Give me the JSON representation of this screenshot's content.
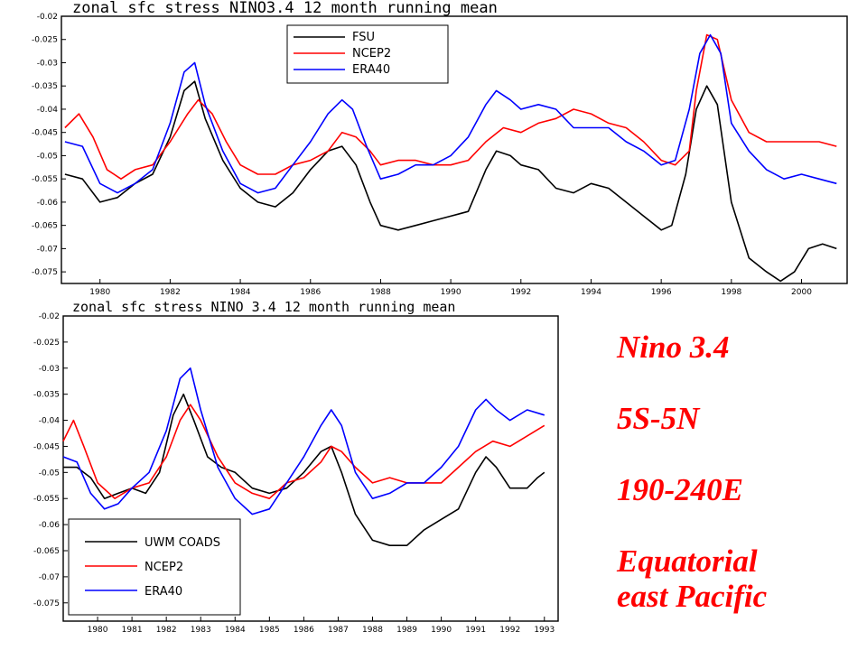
{
  "chart_data": [
    {
      "type": "line",
      "title": "zonal sfc stress NINO3.4 12 month running mean",
      "xlabel": "",
      "ylabel": "",
      "xlim": [
        1978.9,
        2001.3
      ],
      "ylim": [
        -0.0775,
        -0.02
      ],
      "yticks": [
        "-0.02",
        "-0.025",
        "-0.03",
        "-0.035",
        "-0.04",
        "-0.045",
        "-0.05",
        "-0.055",
        "-0.06",
        "-0.065",
        "-0.07",
        "-0.075"
      ],
      "xticks": [
        "1980",
        "1982",
        "1984",
        "1986",
        "1988",
        "1990",
        "1992",
        "1994",
        "1996",
        "1998",
        "2000"
      ],
      "grid": false,
      "legend": "top-left",
      "series": [
        {
          "name": "FSU",
          "color": "#000000",
          "x": [
            1979.0,
            1979.5,
            1980.0,
            1980.5,
            1981.0,
            1981.5,
            1982.0,
            1982.4,
            1982.7,
            1983.0,
            1983.5,
            1984.0,
            1984.5,
            1985.0,
            1985.5,
            1986.0,
            1986.5,
            1986.9,
            1987.3,
            1987.7,
            1988.0,
            1988.5,
            1989.0,
            1989.5,
            1990.0,
            1990.5,
            1991.0,
            1991.3,
            1991.7,
            1992.0,
            1992.5,
            1993.0,
            1993.5,
            1994.0,
            1994.5,
            1995.0,
            1995.5,
            1996.0,
            1996.3,
            1996.7,
            1997.0,
            1997.3,
            1997.6,
            1998.0,
            1998.5,
            1999.0,
            1999.4,
            1999.8,
            2000.2,
            2000.6,
            2001.0
          ],
          "y": [
            -0.054,
            -0.055,
            -0.06,
            -0.059,
            -0.056,
            -0.054,
            -0.046,
            -0.036,
            -0.034,
            -0.042,
            -0.051,
            -0.057,
            -0.06,
            -0.061,
            -0.058,
            -0.053,
            -0.049,
            -0.048,
            -0.052,
            -0.06,
            -0.065,
            -0.066,
            -0.065,
            -0.064,
            -0.063,
            -0.062,
            -0.053,
            -0.049,
            -0.05,
            -0.052,
            -0.053,
            -0.057,
            -0.058,
            -0.056,
            -0.057,
            -0.06,
            -0.063,
            -0.066,
            -0.065,
            -0.054,
            -0.04,
            -0.035,
            -0.039,
            -0.06,
            -0.072,
            -0.075,
            -0.077,
            -0.075,
            -0.07,
            -0.069,
            -0.07
          ]
        },
        {
          "name": "NCEP2",
          "color": "#ff0000",
          "x": [
            1979.0,
            1979.4,
            1979.8,
            1980.2,
            1980.6,
            1981.0,
            1981.5,
            1982.0,
            1982.5,
            1982.8,
            1983.2,
            1983.6,
            1984.0,
            1984.5,
            1985.0,
            1985.5,
            1986.0,
            1986.5,
            1986.9,
            1987.3,
            1987.7,
            1988.0,
            1988.5,
            1989.0,
            1989.5,
            1990.0,
            1990.5,
            1991.0,
            1991.5,
            1992.0,
            1992.5,
            1993.0,
            1993.5,
            1994.0,
            1994.5,
            1995.0,
            1995.5,
            1996.0,
            1996.4,
            1996.8,
            1997.0,
            1997.3,
            1997.6,
            1998.0,
            1998.5,
            1999.0,
            1999.5,
            2000.0,
            2000.5,
            2001.0
          ],
          "y": [
            -0.044,
            -0.041,
            -0.046,
            -0.053,
            -0.055,
            -0.053,
            -0.052,
            -0.047,
            -0.041,
            -0.038,
            -0.041,
            -0.047,
            -0.052,
            -0.054,
            -0.054,
            -0.052,
            -0.051,
            -0.049,
            -0.045,
            -0.046,
            -0.049,
            -0.052,
            -0.051,
            -0.051,
            -0.052,
            -0.052,
            -0.051,
            -0.047,
            -0.044,
            -0.045,
            -0.043,
            -0.042,
            -0.04,
            -0.041,
            -0.043,
            -0.044,
            -0.047,
            -0.051,
            -0.052,
            -0.049,
            -0.036,
            -0.024,
            -0.025,
            -0.038,
            -0.045,
            -0.047,
            -0.047,
            -0.047,
            -0.047,
            -0.048
          ]
        },
        {
          "name": "ERA40",
          "color": "#0000ff",
          "x": [
            1979.0,
            1979.5,
            1980.0,
            1980.5,
            1981.0,
            1981.5,
            1982.0,
            1982.4,
            1982.7,
            1983.0,
            1983.5,
            1984.0,
            1984.5,
            1985.0,
            1985.5,
            1986.0,
            1986.5,
            1986.9,
            1987.2,
            1987.6,
            1988.0,
            1988.5,
            1989.0,
            1989.5,
            1990.0,
            1990.5,
            1991.0,
            1991.3,
            1991.7,
            1992.0,
            1992.5,
            1993.0,
            1993.5,
            1994.0,
            1994.5,
            1995.0,
            1995.5,
            1996.0,
            1996.4,
            1996.8,
            1997.1,
            1997.4,
            1997.7,
            1998.0,
            1998.5,
            1999.0,
            1999.5,
            2000.0,
            2000.5,
            2001.0
          ],
          "y": [
            -0.047,
            -0.048,
            -0.056,
            -0.058,
            -0.056,
            -0.053,
            -0.043,
            -0.032,
            -0.03,
            -0.039,
            -0.049,
            -0.056,
            -0.058,
            -0.057,
            -0.052,
            -0.047,
            -0.041,
            -0.038,
            -0.04,
            -0.048,
            -0.055,
            -0.054,
            -0.052,
            -0.052,
            -0.05,
            -0.046,
            -0.039,
            -0.036,
            -0.038,
            -0.04,
            -0.039,
            -0.04,
            -0.044,
            -0.044,
            -0.044,
            -0.047,
            -0.049,
            -0.052,
            -0.051,
            -0.04,
            -0.028,
            -0.024,
            -0.028,
            -0.043,
            -0.049,
            -0.053,
            -0.055,
            -0.054,
            -0.055,
            -0.056
          ]
        }
      ]
    },
    {
      "type": "line",
      "title": "zonal sfc stress NINO 3.4 12 month running mean",
      "xlabel": "",
      "ylabel": "",
      "xlim": [
        1979.0,
        1993.4
      ],
      "ylim": [
        -0.0785,
        -0.02
      ],
      "yticks": [
        "-0.02",
        "-0.025",
        "-0.03",
        "-0.035",
        "-0.04",
        "-0.045",
        "-0.05",
        "-0.055",
        "-0.06",
        "-0.065",
        "-0.07",
        "-0.075"
      ],
      "xticks": [
        "1980",
        "1981",
        "1982",
        "1983",
        "1984",
        "1985",
        "1986",
        "1987",
        "1988",
        "1989",
        "1990",
        "1991",
        "1992",
        "1993"
      ],
      "grid": false,
      "legend": "bottom-left",
      "series": [
        {
          "name": "UWM COADS",
          "color": "#000000",
          "x": [
            1979.0,
            1979.4,
            1979.8,
            1980.2,
            1980.6,
            1981.0,
            1981.4,
            1981.8,
            1982.2,
            1982.5,
            1982.8,
            1983.2,
            1983.6,
            1984.0,
            1984.5,
            1985.0,
            1985.5,
            1986.0,
            1986.5,
            1986.8,
            1987.1,
            1987.5,
            1988.0,
            1988.5,
            1989.0,
            1989.5,
            1990.0,
            1990.5,
            1991.0,
            1991.3,
            1991.6,
            1992.0,
            1992.5,
            1992.8,
            1993.0
          ],
          "y": [
            -0.049,
            -0.049,
            -0.051,
            -0.055,
            -0.054,
            -0.053,
            -0.054,
            -0.05,
            -0.039,
            -0.035,
            -0.04,
            -0.047,
            -0.049,
            -0.05,
            -0.053,
            -0.054,
            -0.053,
            -0.05,
            -0.046,
            -0.045,
            -0.05,
            -0.058,
            -0.063,
            -0.064,
            -0.064,
            -0.061,
            -0.059,
            -0.057,
            -0.05,
            -0.047,
            -0.049,
            -0.053,
            -0.053,
            -0.051,
            -0.05
          ]
        },
        {
          "name": "NCEP2",
          "color": "#ff0000",
          "x": [
            1979.0,
            1979.3,
            1979.6,
            1980.0,
            1980.5,
            1981.0,
            1981.5,
            1982.0,
            1982.4,
            1982.7,
            1983.0,
            1983.5,
            1984.0,
            1984.5,
            1985.0,
            1985.5,
            1986.0,
            1986.5,
            1986.8,
            1987.1,
            1987.5,
            1988.0,
            1988.5,
            1989.0,
            1989.5,
            1990.0,
            1990.5,
            1991.0,
            1991.5,
            1992.0,
            1992.5,
            1993.0
          ],
          "y": [
            -0.044,
            -0.04,
            -0.045,
            -0.052,
            -0.055,
            -0.053,
            -0.052,
            -0.047,
            -0.04,
            -0.037,
            -0.04,
            -0.047,
            -0.052,
            -0.054,
            -0.055,
            -0.052,
            -0.051,
            -0.048,
            -0.045,
            -0.046,
            -0.049,
            -0.052,
            -0.051,
            -0.052,
            -0.052,
            -0.052,
            -0.049,
            -0.046,
            -0.044,
            -0.045,
            -0.043,
            -0.041
          ]
        },
        {
          "name": "ERA40",
          "color": "#0000ff",
          "x": [
            1979.0,
            1979.4,
            1979.8,
            1980.2,
            1980.6,
            1981.0,
            1981.5,
            1982.0,
            1982.4,
            1982.7,
            1983.0,
            1983.5,
            1984.0,
            1984.5,
            1985.0,
            1985.5,
            1986.0,
            1986.5,
            1986.8,
            1987.1,
            1987.5,
            1988.0,
            1988.5,
            1989.0,
            1989.5,
            1990.0,
            1990.5,
            1991.0,
            1991.3,
            1991.6,
            1992.0,
            1992.5,
            1993.0
          ],
          "y": [
            -0.047,
            -0.048,
            -0.054,
            -0.057,
            -0.056,
            -0.053,
            -0.05,
            -0.042,
            -0.032,
            -0.03,
            -0.038,
            -0.049,
            -0.055,
            -0.058,
            -0.057,
            -0.052,
            -0.047,
            -0.041,
            -0.038,
            -0.041,
            -0.05,
            -0.055,
            -0.054,
            -0.052,
            -0.052,
            -0.049,
            -0.045,
            -0.038,
            -0.036,
            -0.038,
            -0.04,
            -0.038,
            -0.039
          ]
        }
      ]
    }
  ],
  "annotations": {
    "region_name": "Nino 3.4",
    "latitude_band": "5S-5N",
    "longitude_band": "190-240E",
    "region_desc_line1": "Equatorial",
    "region_desc_line2": "east Pacific"
  }
}
